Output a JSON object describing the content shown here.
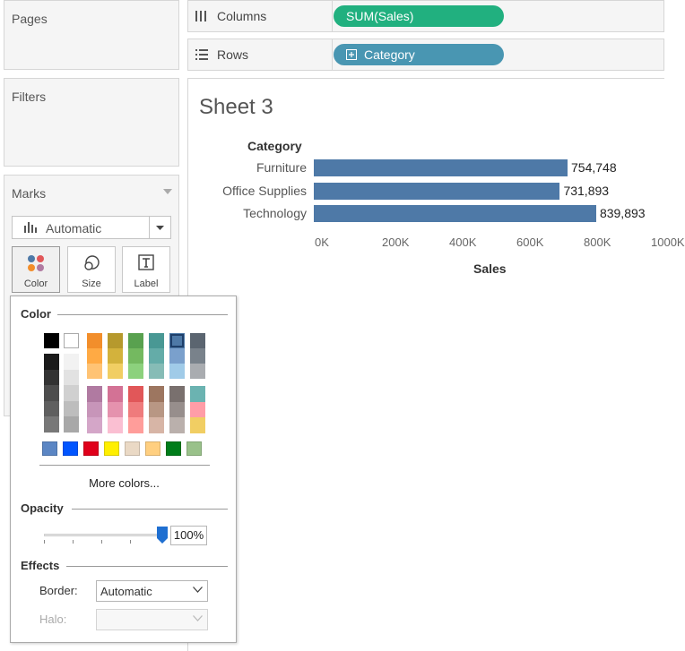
{
  "left_panel": {
    "pages_title": "Pages",
    "filters_title": "Filters",
    "marks_title": "Marks",
    "mark_type": "Automatic",
    "buttons": [
      {
        "label": "Color",
        "icon": "color-dots-icon"
      },
      {
        "label": "Size",
        "icon": "size-icon"
      },
      {
        "label": "Label",
        "icon": "label-icon"
      }
    ]
  },
  "shelves": {
    "columns_label": "Columns",
    "columns_pill": "SUM(Sales)",
    "columns_pill_color": "#21b07f",
    "rows_label": "Rows",
    "rows_pill": "Category",
    "rows_pill_color": "#4996b2"
  },
  "sheet": {
    "title": "Sheet 3"
  },
  "chart_data": {
    "type": "bar",
    "orientation": "horizontal",
    "row_header": "Category",
    "categories": [
      "Furniture",
      "Office Supplies",
      "Technology"
    ],
    "values": [
      754748,
      731893,
      839893
    ],
    "value_labels": [
      "754,748",
      "731,893",
      "839,893"
    ],
    "xlabel": "Sales",
    "xlim": [
      0,
      1000000
    ],
    "ticks": [
      "0K",
      "200K",
      "400K",
      "600K",
      "800K",
      "1000K"
    ],
    "bar_color": "#4e79a7",
    "grid": false
  },
  "color_popup": {
    "color_title": "Color",
    "more_colors": "More colors...",
    "opacity_title": "Opacity",
    "opacity_value": "100%",
    "opacity_level": 1.0,
    "effects_title": "Effects",
    "border_label": "Border:",
    "border_value": "Automatic",
    "halo_label": "Halo:",
    "halo_value": "",
    "selected_swatch": "#4e79a7",
    "palette": {
      "black": "#000000",
      "white": "#ffffff",
      "grays_dark": [
        "#1a1a1a",
        "#333333",
        "#4d4d4d",
        "#5f5f5f",
        "#787878"
      ],
      "grays_light": [
        "#f2f2f2",
        "#e2e2e2",
        "#d0d0d0",
        "#bdbdbd",
        "#a8a8a8"
      ],
      "top_cols": [
        [
          "#f28e2b",
          "#ffaa44",
          "#ffc374"
        ],
        [
          "#b6992d",
          "#d3b23c",
          "#f1ce63"
        ],
        [
          "#59a14f",
          "#74b960",
          "#8cd17d"
        ],
        [
          "#499894",
          "#64aca8",
          "#86bcb6"
        ],
        [
          "#4e79a7",
          "#7aa0cc",
          "#a0cbe8"
        ],
        [
          "#5b6570",
          "#79828b",
          "#a9acb0"
        ]
      ],
      "bottom_cols": [
        [
          "#b07aa1",
          "#c795b9",
          "#d4a6c8"
        ],
        [
          "#d37295",
          "#e592ae",
          "#fabfd2"
        ],
        [
          "#e15759",
          "#ef7b7c",
          "#ff9d9a"
        ],
        [
          "#9d7660",
          "#b89784",
          "#d7b5a6"
        ],
        [
          "#79706e",
          "#978e8c",
          "#bab0ac"
        ],
        [
          "#6bb3b1",
          "#ff9da7",
          "#f1ce63"
        ]
      ],
      "bottom_row": [
        "#5b86c4",
        "#0055ff",
        "#e0001b",
        "#ffef00",
        "#ead9c5",
        "#ffcf80",
        "#007d1a",
        "#99c18a"
      ]
    }
  }
}
